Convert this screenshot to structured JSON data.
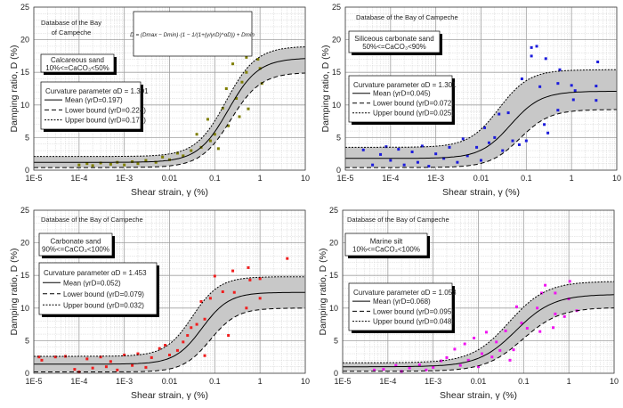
{
  "formula": {
    "text": "D = (Dmax − Dmin)·(1 − 1/(1+(γ/γrD)^αD)) + Dmin"
  },
  "chart_data": [
    {
      "type": "scatter",
      "title_lines": [
        "Database of the Bay",
        "of Campeche"
      ],
      "soil_lines": [
        "Calcareous sand",
        "10%<=CaCO₃<50%"
      ],
      "xlabel": "Shear strain, γ (%)",
      "ylabel": "Damping ratio, D (%)",
      "xscale": "log",
      "xlim": [
        1e-05,
        10
      ],
      "ylim": [
        0,
        25
      ],
      "xticks": [
        "1E-5",
        "1E-4",
        "1E-3",
        "0.01",
        "0.1",
        "1",
        "10"
      ],
      "yticks": [
        "0",
        "5",
        "10",
        "15",
        "20",
        "25"
      ],
      "grid": true,
      "point_color": "#7f7f00",
      "curvature_label": "Curvature parameter αD = 1.301",
      "alpha": 1.301,
      "curves": [
        {
          "name": "Mean",
          "gamma_r": 0.197,
          "label": "Mean (γrD=0.197)",
          "dmin": 1.2,
          "dmax": 17.2
        },
        {
          "name": "Lower bound",
          "gamma_r": 0.224,
          "label": "Lower bound (γrD=0.224)",
          "dmin": 0.4,
          "dmax": 15.0
        },
        {
          "name": "Upper bound",
          "gamma_r": 0.177,
          "label": "Upper bound (γrD=0.177)",
          "dmin": 2.1,
          "dmax": 19.0
        }
      ],
      "points": [
        [
          0.0001,
          0.8
        ],
        [
          0.00015,
          1.0
        ],
        [
          0.0002,
          0.7
        ],
        [
          0.0003,
          1.1
        ],
        [
          0.0005,
          0.9
        ],
        [
          0.0007,
          1.2
        ],
        [
          0.001,
          0.8
        ],
        [
          0.0015,
          1.3
        ],
        [
          0.002,
          1.0
        ],
        [
          0.003,
          1.5
        ],
        [
          0.005,
          1.2
        ],
        [
          0.007,
          2.0
        ],
        [
          0.01,
          1.6
        ],
        [
          0.015,
          2.6
        ],
        [
          0.02,
          2.2
        ],
        [
          0.03,
          3.0
        ],
        [
          0.04,
          5.5
        ],
        [
          0.05,
          3.5
        ],
        [
          0.07,
          7.8
        ],
        [
          0.08,
          4.5
        ],
        [
          0.1,
          5.5
        ],
        [
          0.12,
          3.3
        ],
        [
          0.15,
          9.5
        ],
        [
          0.18,
          12.5
        ],
        [
          0.2,
          6.8
        ],
        [
          0.25,
          16.3
        ],
        [
          0.3,
          11
        ],
        [
          0.35,
          8.2
        ],
        [
          0.4,
          13.5
        ],
        [
          0.5,
          15
        ],
        [
          0.5,
          17.3
        ],
        [
          0.55,
          9.4
        ],
        [
          0.9,
          17
        ],
        [
          1.0,
          15.6
        ],
        [
          1.1,
          13.3
        ]
      ]
    },
    {
      "type": "scatter",
      "title_lines": [
        "Database of the Bay of Campeche"
      ],
      "soil_lines": [
        "Siliceous carbonate sand",
        "50%<=CaCO₃<90%"
      ],
      "xlabel": "Shear strain, γ (%)",
      "ylabel": "Damping ratio, D (%)",
      "xscale": "log",
      "xlim": [
        1e-05,
        10
      ],
      "ylim": [
        0,
        25
      ],
      "xticks": [
        "1E-5",
        "1E-4",
        "1E-3",
        "0.01",
        "0.1",
        "1",
        "10"
      ],
      "yticks": [
        "0",
        "5",
        "10",
        "15",
        "20",
        "25"
      ],
      "grid": true,
      "point_color": "#1c1cdc",
      "curvature_label": "Curvature parameter αD = 1.301",
      "alpha": 1.301,
      "curves": [
        {
          "name": "Mean",
          "gamma_r": 0.045,
          "label": "Mean (γrD=0.045)",
          "dmin": 1.8,
          "dmax": 12.1
        },
        {
          "name": "Lower bound",
          "gamma_r": 0.072,
          "label": "Lower bound (γrD=0.072)",
          "dmin": 0.4,
          "dmax": 9.3
        },
        {
          "name": "Upper bound",
          "gamma_r": 0.025,
          "label": "Upper bound (γrD=0.025)",
          "dmin": 3.5,
          "dmax": 15.4
        }
      ],
      "points": [
        [
          2.5e-05,
          3.1
        ],
        [
          4e-05,
          0.8
        ],
        [
          6e-05,
          2.4
        ],
        [
          8e-05,
          3.6
        ],
        [
          0.0001,
          1.5
        ],
        [
          0.00015,
          3.2
        ],
        [
          0.0002,
          0.8
        ],
        [
          0.0003,
          2.8
        ],
        [
          0.0004,
          1.2
        ],
        [
          0.0005,
          3.7
        ],
        [
          0.0007,
          0.6
        ],
        [
          0.001,
          2.5
        ],
        [
          0.0015,
          1.8
        ],
        [
          0.002,
          3.5
        ],
        [
          0.003,
          1.2
        ],
        [
          0.004,
          4.8
        ],
        [
          0.005,
          2.2
        ],
        [
          0.008,
          3.5
        ],
        [
          0.01,
          1.5
        ],
        [
          0.012,
          6.5
        ],
        [
          0.015,
          4.2
        ],
        [
          0.02,
          5.0
        ],
        [
          0.025,
          8.6
        ],
        [
          0.03,
          3.0
        ],
        [
          0.04,
          8.8
        ],
        [
          0.05,
          4.5
        ],
        [
          0.07,
          3.9
        ],
        [
          0.08,
          14
        ],
        [
          0.1,
          4.5
        ],
        [
          0.13,
          18.8
        ],
        [
          0.13,
          17.5
        ],
        [
          0.17,
          19
        ],
        [
          0.2,
          12.8
        ],
        [
          0.25,
          7.0
        ],
        [
          0.27,
          17.1
        ],
        [
          0.3,
          5.7
        ],
        [
          0.5,
          13.3
        ],
        [
          0.5,
          9.2
        ],
        [
          0.55,
          15.4
        ],
        [
          1.0,
          13
        ],
        [
          1.1,
          10.8
        ],
        [
          1.2,
          12.2
        ],
        [
          3.5,
          12.9
        ],
        [
          3.8,
          16.6
        ],
        [
          3.5,
          10.7
        ]
      ]
    },
    {
      "type": "scatter",
      "title_lines": [
        "Database of the Bay of Campeche"
      ],
      "soil_lines": [
        "Carbonate sand",
        "90%<=CaCO₃<100%"
      ],
      "xlabel": "Shear strain, γ (%)",
      "ylabel": "Damping ratio, D (%)",
      "xscale": "log",
      "xlim": [
        1e-05,
        10
      ],
      "ylim": [
        0,
        25
      ],
      "xticks": [
        "1E-5",
        "1E-4",
        "1E-3",
        "0.01",
        "0.1",
        "1",
        "10"
      ],
      "yticks": [
        "0",
        "5",
        "10",
        "15",
        "20",
        "25"
      ],
      "grid": true,
      "point_color": "#f01e1e",
      "curvature_label": "Curvature parameter αD = 1.453",
      "alpha": 1.453,
      "curves": [
        {
          "name": "Mean",
          "gamma_r": 0.052,
          "label": "Mean (γrD=0.052)",
          "dmin": 1.4,
          "dmax": 12.4
        },
        {
          "name": "Lower bound",
          "gamma_r": 0.079,
          "label": "Lower bound (γrD=0.079)",
          "dmin": 0.2,
          "dmax": 10.0
        },
        {
          "name": "Upper bound",
          "gamma_r": 0.032,
          "label": "Upper bound (γrD=0.032)",
          "dmin": 2.6,
          "dmax": 14.8
        }
      ],
      "points": [
        [
          1.3e-05,
          2.5
        ],
        [
          1.5e-05,
          2.0
        ],
        [
          3e-05,
          2.5
        ],
        [
          5e-05,
          2.6
        ],
        [
          8e-05,
          0.6
        ],
        [
          0.0001,
          0.2
        ],
        [
          0.00015,
          2.2
        ],
        [
          0.0002,
          0.8
        ],
        [
          0.0003,
          2.5
        ],
        [
          0.0004,
          1.0
        ],
        [
          0.0005,
          1.8
        ],
        [
          0.0007,
          0.5
        ],
        [
          0.001,
          2.8
        ],
        [
          0.0015,
          1.2
        ],
        [
          0.002,
          3.0
        ],
        [
          0.003,
          0.9
        ],
        [
          0.004,
          2.4
        ],
        [
          0.006,
          3.8
        ],
        [
          0.008,
          4.3
        ],
        [
          0.01,
          2.8
        ],
        [
          0.015,
          3.5
        ],
        [
          0.02,
          4.8
        ],
        [
          0.025,
          5.8
        ],
        [
          0.03,
          7.0
        ],
        [
          0.04,
          7.5
        ],
        [
          0.05,
          11
        ],
        [
          0.06,
          8.3
        ],
        [
          0.06,
          2.7
        ],
        [
          0.08,
          11.5
        ],
        [
          0.1,
          14.9
        ],
        [
          0.15,
          12.5
        ],
        [
          0.2,
          5.8
        ],
        [
          0.25,
          15.7
        ],
        [
          0.27,
          12.4
        ],
        [
          0.5,
          10
        ],
        [
          0.55,
          16.2
        ],
        [
          0.6,
          14.3
        ],
        [
          1.0,
          11.5
        ],
        [
          1.0,
          14.5
        ],
        [
          4.0,
          17.6
        ]
      ]
    },
    {
      "type": "scatter",
      "title_lines": [
        "Database of the Bay of Campeche"
      ],
      "soil_lines": [
        "Marine silt",
        "10%<=CaCO₃<100%"
      ],
      "xlabel": "Shear strain, γ (%)",
      "ylabel": "Damping ratio, D (%)",
      "xscale": "log",
      "xlim": [
        1e-05,
        10
      ],
      "ylim": [
        0,
        25
      ],
      "xticks": [
        "1E-5",
        "1E-4",
        "1E-3",
        "0.01",
        "0.1",
        "1",
        "10"
      ],
      "yticks": [
        "0",
        "5",
        "10",
        "15",
        "20",
        "25"
      ],
      "grid": true,
      "point_color": "#f014f0",
      "curvature_label": "Curvature parameter αD = 1.053",
      "alpha": 1.053,
      "curves": [
        {
          "name": "Mean",
          "gamma_r": 0.068,
          "label": "Mean (γrD=0.068)",
          "dmin": 1.0,
          "dmax": 12.1
        },
        {
          "name": "Lower bound",
          "gamma_r": 0.095,
          "label": "Lower bound (γrD=0.095)",
          "dmin": 0.3,
          "dmax": 10.1
        },
        {
          "name": "Upper bound",
          "gamma_r": 0.048,
          "label": "Upper bound (γrD=0.048)",
          "dmin": 1.6,
          "dmax": 14.1
        }
      ],
      "points": [
        [
          5e-05,
          0.5
        ],
        [
          8e-05,
          0.6
        ],
        [
          0.00015,
          1.2
        ],
        [
          0.0002,
          0.3
        ],
        [
          0.0003,
          0.8
        ],
        [
          0.0005,
          1.3
        ],
        [
          0.0007,
          0.5
        ],
        [
          0.001,
          0.9
        ],
        [
          0.0015,
          1.9
        ],
        [
          0.002,
          2.4
        ],
        [
          0.003,
          3.7
        ],
        [
          0.004,
          1.2
        ],
        [
          0.005,
          4.5
        ],
        [
          0.006,
          2.0
        ],
        [
          0.008,
          5.4
        ],
        [
          0.01,
          1.0
        ],
        [
          0.012,
          3.0
        ],
        [
          0.015,
          6.3
        ],
        [
          0.02,
          2.5
        ],
        [
          0.025,
          4.8
        ],
        [
          0.03,
          3.5
        ],
        [
          0.04,
          6.5
        ],
        [
          0.05,
          2.0
        ],
        [
          0.06,
          3.6
        ],
        [
          0.07,
          10.2
        ],
        [
          0.09,
          7.7
        ],
        [
          0.12,
          6.9
        ],
        [
          0.2,
          10
        ],
        [
          0.23,
          6.4
        ],
        [
          0.25,
          12.3
        ],
        [
          0.3,
          13.5
        ],
        [
          0.45,
          7.0
        ],
        [
          0.5,
          12.3
        ],
        [
          0.5,
          9.1
        ],
        [
          0.8,
          8.7
        ],
        [
          1.0,
          11.4
        ],
        [
          1.05,
          14.1
        ],
        [
          1.5,
          9.6
        ]
      ]
    }
  ]
}
